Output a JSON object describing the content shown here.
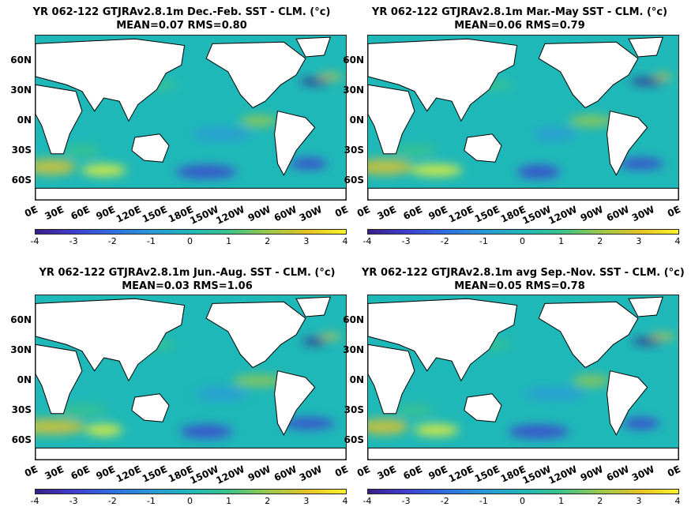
{
  "chart_data": [
    {
      "type": "heatmap",
      "title": "YR 062-122 GTJRAv2.8.1m  Dec.-Feb. SST - CLM. (°c)",
      "subtitle": "MEAN=0.07   RMS=0.80",
      "yticks": [
        "60N",
        "30N",
        "0N",
        "30S",
        "60S"
      ],
      "xticks": [
        "0E",
        "30E",
        "60E",
        "90E",
        "120E",
        "150E",
        "180E",
        "150W",
        "120W",
        "90W",
        "60W",
        "30W",
        "0E"
      ],
      "colorbar_ticks": [
        "-4",
        "-3",
        "-2",
        "-1",
        "0",
        "1",
        "2",
        "3",
        "4"
      ],
      "clim": [
        -4,
        4
      ]
    },
    {
      "type": "heatmap",
      "title": "YR 062-122 GTJRAv2.8.1m Mar.-May SST - CLM. (°c)",
      "subtitle": "MEAN=0.06   RMS=0.79",
      "yticks": [
        "60N",
        "30N",
        "0N",
        "30S",
        "60S"
      ],
      "xticks": [
        "0E",
        "30E",
        "60E",
        "90E",
        "120E",
        "150E",
        "180E",
        "150W",
        "120W",
        "90W",
        "60W",
        "30W",
        "0E"
      ],
      "colorbar_ticks": [
        "-4",
        "-3",
        "-2",
        "-1",
        "0",
        "1",
        "2",
        "3",
        "4"
      ],
      "clim": [
        -4,
        4
      ]
    },
    {
      "type": "heatmap",
      "title": "YR 062-122 GTJRAv2.8.1m Jun.-Aug. SST - CLM. (°c)",
      "subtitle": "MEAN=0.03   RMS=1.06",
      "yticks": [
        "60N",
        "30N",
        "0N",
        "30S",
        "60S"
      ],
      "xticks": [
        "0E",
        "30E",
        "60E",
        "90E",
        "120E",
        "150E",
        "180E",
        "150W",
        "120W",
        "90W",
        "60W",
        "30W",
        "0E"
      ],
      "colorbar_ticks": [
        "-4",
        "-3",
        "-2",
        "-1",
        "0",
        "1",
        "2",
        "3",
        "4"
      ],
      "clim": [
        -4,
        4
      ]
    },
    {
      "type": "heatmap",
      "title": "YR 062-122 GTJRAv2.8.1m avg Sep.-Nov. SST - CLM. (°c)",
      "subtitle": "MEAN=0.05   RMS=0.78",
      "yticks": [
        "60N",
        "30N",
        "0N",
        "30S",
        "60S"
      ],
      "xticks": [
        "0E",
        "30E",
        "60E",
        "90E",
        "120E",
        "150E",
        "180E",
        "150W",
        "120W",
        "90W",
        "60W",
        "30W",
        "0E"
      ],
      "colorbar_ticks": [
        "-4",
        "-3",
        "-2",
        "-1",
        "0",
        "1",
        "2",
        "3",
        "4"
      ],
      "clim": [
        -4,
        4
      ]
    }
  ]
}
